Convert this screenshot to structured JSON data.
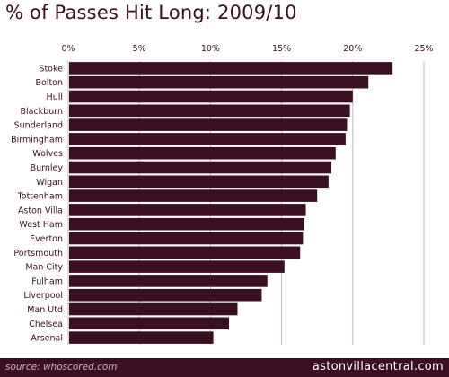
{
  "title": "% of Passes Hit Long:  2009/10",
  "footer": {
    "source": "source: whoscored.com",
    "brand": "astonvillacentral.com"
  },
  "colors": {
    "bar": "#3a0f22",
    "grid": "#c8b6bd",
    "text": "#3a1020",
    "footer_bg": "#3a0f22"
  },
  "chart_data": {
    "type": "bar",
    "orientation": "horizontal",
    "title": "% of Passes Hit Long:  2009/10",
    "categories": [
      "Stoke",
      "Bolton",
      "Hull",
      "Blackburn",
      "Sunderland",
      "Birmingham",
      "Wolves",
      "Burnley",
      "Wigan",
      "Tottenham",
      "Aston Villa",
      "West Ham",
      "Everton",
      "Portsmouth",
      "Man City",
      "Fulham",
      "Liverpool",
      "Man Utd",
      "Chelsea",
      "Arsenal"
    ],
    "values": [
      22.8,
      21.1,
      20.0,
      19.8,
      19.6,
      19.5,
      18.8,
      18.5,
      18.3,
      17.5,
      16.7,
      16.6,
      16.5,
      16.3,
      15.2,
      14.0,
      13.6,
      11.9,
      11.3,
      10.2
    ],
    "xlim": [
      0,
      25
    ],
    "x_ticks": [
      "0%",
      "5%",
      "10%",
      "15%",
      "20%",
      "25%"
    ],
    "x_tick_values": [
      0,
      5,
      10,
      15,
      20,
      25
    ],
    "xaxis_position": "top",
    "grid": true
  }
}
